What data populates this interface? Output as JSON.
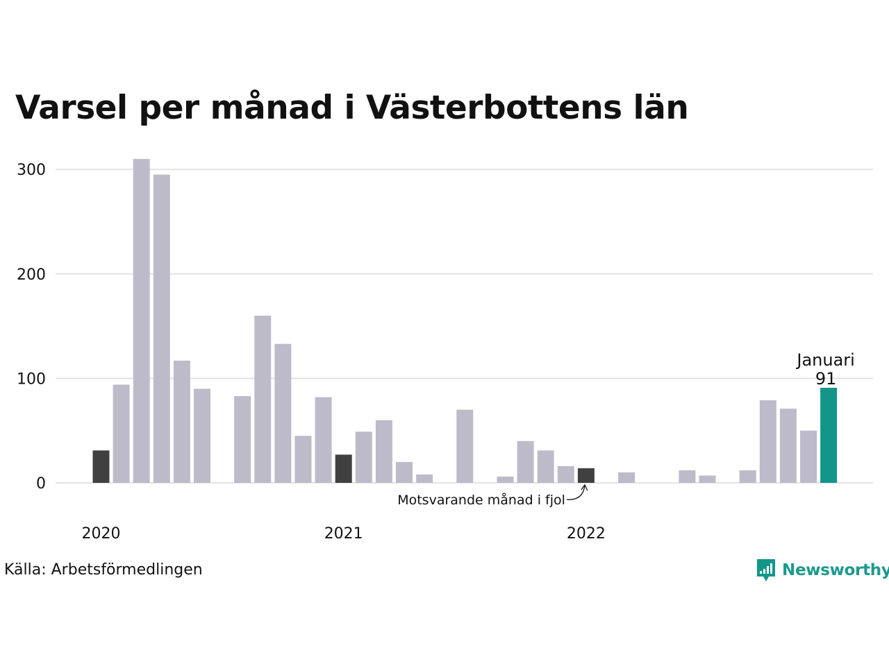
{
  "title": "Varsel per månad i Västerbottens län",
  "source": "Källa: Arbetsförmedlingen",
  "brand": "Newsworthy",
  "colors": {
    "bar": "#bdbbca",
    "comparison": "#404040",
    "highlight": "#12968a",
    "grid": "#e3e3e3"
  },
  "chart_data": {
    "type": "bar",
    "ylim": [
      0,
      320
    ],
    "yticks": [
      0,
      100,
      200,
      300
    ],
    "xticks": [
      "2020",
      "2021",
      "2022"
    ],
    "months": [
      "2020-01",
      "2020-02",
      "2020-03",
      "2020-04",
      "2020-05",
      "2020-06",
      "2020-07",
      "2020-08",
      "2020-09",
      "2020-10",
      "2020-11",
      "2020-12",
      "2021-01",
      "2021-02",
      "2021-03",
      "2021-04",
      "2021-05",
      "2021-06",
      "2021-07",
      "2021-08",
      "2021-09",
      "2021-10",
      "2021-11",
      "2021-12",
      "2022-01",
      "2022-02",
      "2022-03",
      "2022-04",
      "2022-05",
      "2022-06",
      "2022-07",
      "2022-08",
      "2022-09",
      "2022-10",
      "2022-11",
      "2022-12",
      "2023-01"
    ],
    "values": [
      31,
      94,
      310,
      295,
      117,
      90,
      0,
      83,
      160,
      133,
      45,
      82,
      27,
      49,
      60,
      20,
      8,
      0,
      70,
      0,
      6,
      40,
      31,
      16,
      14,
      0,
      10,
      0,
      0,
      12,
      7,
      0,
      12,
      79,
      71,
      50,
      91
    ],
    "comparison_months": [
      "2020-01",
      "2021-01",
      "2022-01"
    ],
    "highlight_month": "2023-01",
    "highlight_label": "Januari",
    "highlight_value": "91",
    "annotation": "Motsvarande månad i fjol",
    "grid": true
  }
}
